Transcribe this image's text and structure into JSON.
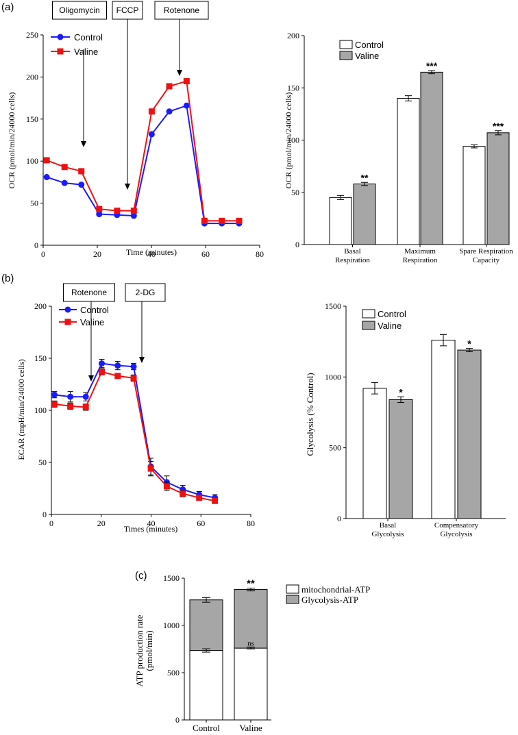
{
  "panels": {
    "a": "(a)",
    "b": "(b)",
    "c": "(c)"
  },
  "colors": {
    "control": "#1a1aff",
    "valine": "#ee1111",
    "gray": "#a6a6a6",
    "white": "#ffffff"
  },
  "chart_data": [
    {
      "id": "ocr_line",
      "type": "line",
      "xlabel": "Time (minutes)",
      "ylabel": "OCR (pmol/min/24000 cells)",
      "xlim": [
        0,
        80
      ],
      "ylim": [
        0,
        250
      ],
      "xticks": [
        0,
        20,
        40,
        60,
        80
      ],
      "yticks": [
        0,
        50,
        100,
        150,
        200,
        250
      ],
      "legend": [
        "Control",
        "Valine"
      ],
      "annotations": [
        {
          "label": "Oligomycin",
          "x": 17
        },
        {
          "label": "FCCP",
          "x": 34
        },
        {
          "label": "Rotenone",
          "x": 55
        }
      ],
      "series": [
        {
          "name": "Control",
          "x": [
            1.3,
            7.9,
            14.1,
            20.7,
            27.3,
            33.5,
            40.1,
            46.6,
            53.0,
            59.6,
            66.0,
            72.4
          ],
          "y": [
            81,
            74,
            72,
            37,
            36,
            35,
            132,
            159,
            166,
            26,
            26,
            26
          ]
        },
        {
          "name": "Valine",
          "x": [
            1.3,
            7.9,
            14.1,
            20.7,
            27.3,
            33.5,
            40.1,
            46.6,
            53.0,
            59.6,
            66.0,
            72.4
          ],
          "y": [
            101,
            93,
            88,
            43,
            41,
            41,
            159,
            189,
            195,
            29,
            29,
            29
          ]
        }
      ]
    },
    {
      "id": "ocr_bar",
      "type": "bar",
      "ylabel": "OCR (pmol/min/24000 cells)",
      "ylim": [
        0,
        200
      ],
      "yticks": [
        0,
        50,
        100,
        150,
        200
      ],
      "categories": [
        [
          "Basal",
          "Respiration"
        ],
        [
          "Maximum",
          "Respiration"
        ],
        [
          "Spare Respiration",
          "Capacity"
        ]
      ],
      "legend": [
        "Control",
        "Valine"
      ],
      "series": [
        {
          "name": "Control",
          "values": [
            45,
            140,
            94
          ],
          "errors": [
            2,
            2.5,
            1.5
          ]
        },
        {
          "name": "Valine",
          "values": [
            58,
            165,
            107
          ],
          "errors": [
            1.5,
            1.5,
            2
          ]
        }
      ],
      "significance": [
        "**",
        "***",
        "***"
      ]
    },
    {
      "id": "ecar_line",
      "type": "line",
      "xlabel": "Times (minutes)",
      "ylabel": "ECAR (mpH/min/24000 cells)",
      "xlim": [
        0,
        80
      ],
      "ylim": [
        0,
        200
      ],
      "xticks": [
        0,
        20,
        40,
        60,
        80
      ],
      "yticks": [
        0,
        50,
        100,
        150,
        200
      ],
      "legend": [
        "Control",
        "Valine"
      ],
      "annotations": [
        {
          "label": "Rotenone",
          "x": 16
        },
        {
          "label": "2-DG",
          "x": 37
        }
      ],
      "series": [
        {
          "name": "Control",
          "x": [
            1.2,
            7.6,
            13.8,
            20.2,
            26.6,
            33.0,
            39.9,
            46.3,
            52.7,
            59.3,
            65.6
          ],
          "y": [
            115,
            113,
            113,
            145,
            143,
            142,
            46,
            31,
            24,
            19,
            16
          ],
          "errors": [
            3,
            5,
            4,
            4,
            4,
            3,
            8,
            6,
            4,
            3,
            3
          ]
        },
        {
          "name": "Valine",
          "x": [
            1.2,
            7.6,
            13.8,
            20.2,
            26.6,
            33.0,
            39.9,
            46.3,
            52.7,
            59.3,
            65.6
          ],
          "y": [
            106,
            104,
            103,
            137,
            133,
            131,
            44,
            27,
            20,
            16,
            13
          ],
          "errors": [
            3,
            3,
            3,
            3,
            2,
            3,
            7,
            4,
            3,
            2,
            2
          ]
        }
      ]
    },
    {
      "id": "glyco_bar",
      "type": "bar",
      "ylabel": "Glycolysis (% Control)",
      "ylim": [
        0,
        1500
      ],
      "yticks": [
        0,
        500,
        1000,
        1500
      ],
      "categories": [
        [
          "Basal",
          "Glycolysis"
        ],
        [
          "Compensatory",
          "Glycolysis"
        ]
      ],
      "legend": [
        "Control",
        "Valine"
      ],
      "series": [
        {
          "name": "Control",
          "values": [
            920,
            1260
          ],
          "errors": [
            40,
            40
          ]
        },
        {
          "name": "Valine",
          "values": [
            840,
            1190
          ],
          "errors": [
            20,
            12
          ]
        }
      ],
      "significance": [
        "*",
        "*"
      ]
    },
    {
      "id": "atp_bar",
      "type": "bar",
      "stacked": true,
      "ylabel_lines": [
        "ATP production rate",
        "(pmol/min)"
      ],
      "ylim": [
        0,
        1500
      ],
      "yticks": [
        0,
        500,
        1000,
        1500
      ],
      "categories": [
        "Control",
        "Valine"
      ],
      "legend": [
        "mitochondrial-ATP",
        "Glycolysis-ATP"
      ],
      "series": [
        {
          "name": "mitochondrial-ATP",
          "values": [
            735,
            760
          ],
          "errors": [
            18,
            10
          ]
        },
        {
          "name": "Glycolysis-ATP",
          "values": [
            535,
            620
          ],
          "errors": [
            25,
            15
          ]
        }
      ],
      "significance": [
        {
          "label": "ns",
          "series": "mitochondrial-ATP",
          "index": 1
        },
        {
          "label": "**",
          "series": "total",
          "index": 1
        }
      ]
    }
  ]
}
